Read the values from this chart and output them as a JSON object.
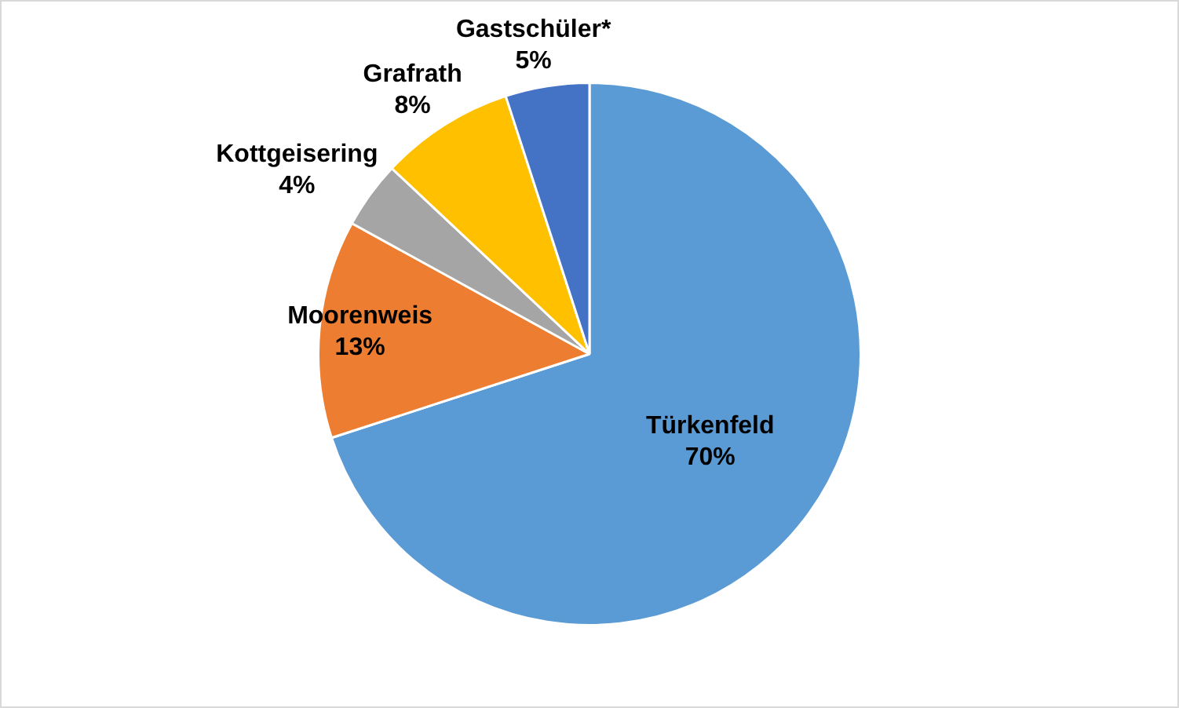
{
  "chart_data": {
    "type": "pie",
    "categories": [
      "Türkenfeld",
      "Moorenweis",
      "Kottgeisering",
      "Grafrath",
      "Gastschüler*"
    ],
    "values": [
      70,
      13,
      4,
      8,
      5
    ],
    "value_labels": [
      "70%",
      "13%",
      "4%",
      "8%",
      "5%"
    ],
    "colors": [
      "#5b9bd5",
      "#ed7d31",
      "#a5a5a5",
      "#ffc000",
      "#4472c4"
    ],
    "legend": false
  }
}
